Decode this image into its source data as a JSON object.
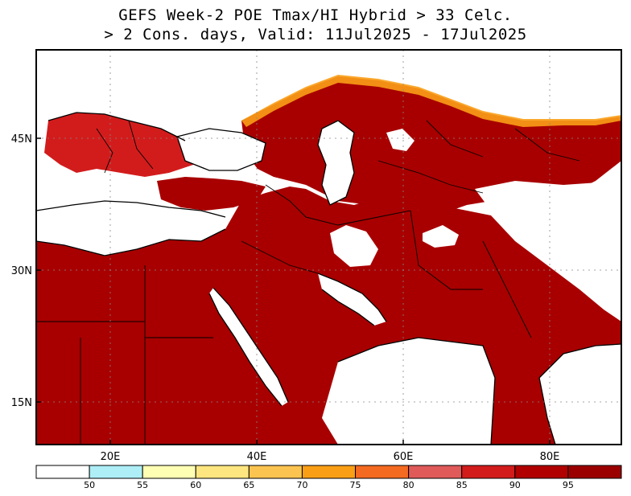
{
  "title": {
    "line1": "GEFS Week-2 POE Tmax/HI Hybrid > 33 Celc.",
    "line2": "> 2 Cons. days, Valid: 11Jul2025 - 17Jul2025"
  },
  "axes": {
    "x_labels": [
      "20E",
      "40E",
      "60E",
      "80E"
    ],
    "y_labels": [
      "45N",
      "30N",
      "15N"
    ]
  },
  "colorbar": {
    "labels": [
      "50",
      "55",
      "60",
      "65",
      "70",
      "75",
      "80",
      "85",
      "90",
      "95"
    ],
    "colors": [
      "#ffffff",
      "#aeeef6",
      "#ffffb4",
      "#fde680",
      "#fbc451",
      "#fa9e16",
      "#f46a20",
      "#e05a5a",
      "#d21c1c",
      "#b00000",
      "#9b0000"
    ]
  },
  "palette": {
    "land_high": "#a80000",
    "land_mid": "#d21c1c",
    "land_low": "#fa9e16",
    "white": "#ffffff",
    "coast": "#000000"
  }
}
